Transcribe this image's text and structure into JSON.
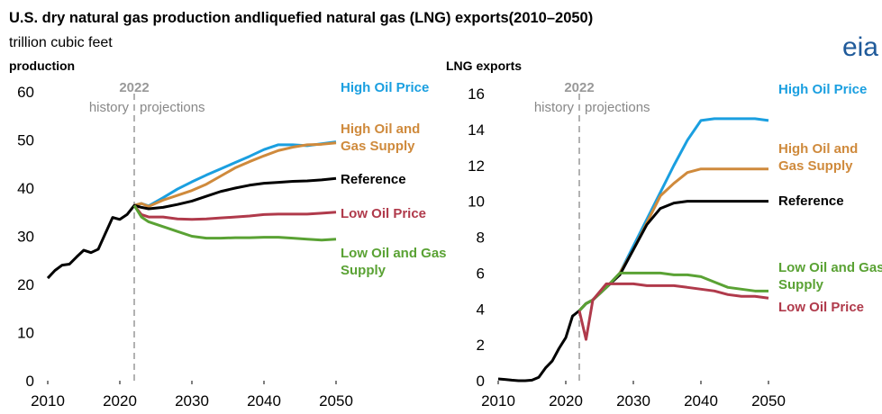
{
  "title": "U.S. dry natural gas production andliquefied natural gas (LNG) exports(2010–2050)",
  "subtitle": "trillion cubic feet",
  "logo": "eia",
  "chart_data": [
    {
      "type": "line",
      "title": "production",
      "x": [
        2010,
        2011,
        2012,
        2013,
        2014,
        2015,
        2016,
        2017,
        2018,
        2019,
        2020,
        2021,
        2022,
        2023,
        2024,
        2026,
        2028,
        2030,
        2032,
        2034,
        2036,
        2038,
        2040,
        2042,
        2044,
        2046,
        2048,
        2050
      ],
      "xlim": [
        2010,
        2050
      ],
      "xticks": [
        2010,
        2020,
        2030,
        2040,
        2050
      ],
      "ylim": [
        0,
        60
      ],
      "yticks": [
        0,
        10,
        20,
        30,
        40,
        50,
        60
      ],
      "divider": {
        "value": 2022,
        "label": "2022"
      },
      "left_note": "history",
      "right_note": "projections",
      "series": [
        {
          "name": "High Oil Price",
          "color": "#1a9fe0",
          "values": [
            null,
            null,
            null,
            null,
            null,
            null,
            null,
            null,
            null,
            null,
            null,
            null,
            36.4,
            36.8,
            36.3,
            38.0,
            39.8,
            41.3,
            42.7,
            44.0,
            45.3,
            46.6,
            48.0,
            49.0,
            49.0,
            48.8,
            49.2,
            49.6
          ]
        },
        {
          "name": "High Oil and Gas Supply",
          "color": "#cf8a3c",
          "values": [
            null,
            null,
            null,
            null,
            null,
            null,
            null,
            null,
            null,
            null,
            null,
            null,
            36.4,
            36.8,
            36.2,
            37.5,
            38.5,
            39.5,
            40.8,
            42.5,
            44.2,
            45.5,
            46.7,
            47.8,
            48.5,
            49.0,
            49.1,
            49.4
          ]
        },
        {
          "name": "Reference",
          "color": "#000000",
          "values": [
            21.3,
            22.9,
            24.0,
            24.2,
            25.7,
            27.1,
            26.6,
            27.3,
            30.6,
            33.9,
            33.5,
            34.5,
            36.4,
            36.0,
            35.7,
            36.0,
            36.6,
            37.3,
            38.3,
            39.3,
            40.0,
            40.6,
            41.0,
            41.2,
            41.4,
            41.5,
            41.7,
            42.0
          ]
        },
        {
          "name": "Low Oil Price",
          "color": "#b03a4b",
          "values": [
            null,
            null,
            null,
            null,
            null,
            null,
            null,
            null,
            null,
            null,
            null,
            null,
            36.4,
            34.5,
            34.0,
            34.0,
            33.6,
            33.5,
            33.6,
            33.8,
            34.0,
            34.2,
            34.5,
            34.6,
            34.6,
            34.6,
            34.8,
            35.0
          ]
        },
        {
          "name": "Low Oil and Gas Supply",
          "color": "#5aa234",
          "values": [
            null,
            null,
            null,
            null,
            null,
            null,
            null,
            null,
            null,
            null,
            null,
            null,
            36.4,
            34.0,
            33.0,
            32.0,
            31.0,
            30.0,
            29.6,
            29.6,
            29.7,
            29.7,
            29.8,
            29.8,
            29.6,
            29.4,
            29.2,
            29.4
          ]
        }
      ]
    },
    {
      "type": "line",
      "title": "LNG exports",
      "x": [
        2010,
        2011,
        2012,
        2013,
        2014,
        2015,
        2016,
        2017,
        2018,
        2019,
        2020,
        2021,
        2022,
        2023,
        2024,
        2026,
        2028,
        2030,
        2032,
        2034,
        2036,
        2038,
        2040,
        2042,
        2044,
        2046,
        2048,
        2050
      ],
      "xlim": [
        2010,
        2050
      ],
      "xticks": [
        2010,
        2020,
        2030,
        2040,
        2050
      ],
      "ylim": [
        0,
        16
      ],
      "yticks": [
        0,
        2,
        4,
        6,
        8,
        10,
        12,
        14,
        16
      ],
      "divider": {
        "value": 2022,
        "label": "2022"
      },
      "left_note": "history",
      "right_note": "projections",
      "series": [
        {
          "name": "High Oil Price",
          "color": "#1a9fe0",
          "values": [
            null,
            null,
            null,
            null,
            null,
            null,
            null,
            null,
            null,
            null,
            null,
            null,
            3.9,
            4.3,
            4.5,
            5.2,
            6.0,
            7.5,
            9.0,
            10.5,
            12.0,
            13.4,
            14.5,
            14.6,
            14.6,
            14.6,
            14.6,
            14.5
          ]
        },
        {
          "name": "High Oil and Gas Supply",
          "color": "#cf8a3c",
          "values": [
            null,
            null,
            null,
            null,
            null,
            null,
            null,
            null,
            null,
            null,
            null,
            null,
            3.9,
            4.3,
            4.5,
            5.2,
            6.0,
            7.3,
            8.8,
            10.3,
            11.0,
            11.6,
            11.8,
            11.8,
            11.8,
            11.8,
            11.8,
            11.8
          ]
        },
        {
          "name": "Reference",
          "color": "#000000",
          "values": [
            0.1,
            0.07,
            0.03,
            0,
            0,
            0.03,
            0.19,
            0.71,
            1.1,
            1.8,
            2.4,
            3.6,
            3.9,
            4.3,
            4.5,
            5.2,
            5.9,
            7.3,
            8.7,
            9.6,
            9.9,
            10.0,
            10.0,
            10.0,
            10.0,
            10.0,
            10.0,
            10.0
          ]
        },
        {
          "name": "Low Oil and Gas Supply",
          "color": "#5aa234",
          "values": [
            null,
            null,
            null,
            null,
            null,
            null,
            null,
            null,
            null,
            null,
            null,
            null,
            3.9,
            4.3,
            4.5,
            5.2,
            6.0,
            6.0,
            6.0,
            6.0,
            5.9,
            5.9,
            5.8,
            5.5,
            5.2,
            5.1,
            5.0,
            5.0
          ]
        },
        {
          "name": "Low Oil Price",
          "color": "#b03a4b",
          "values": [
            null,
            null,
            null,
            null,
            null,
            null,
            null,
            null,
            null,
            null,
            null,
            null,
            3.9,
            2.3,
            4.5,
            5.4,
            5.4,
            5.4,
            5.3,
            5.3,
            5.3,
            5.2,
            5.1,
            5.0,
            4.8,
            4.7,
            4.7,
            4.6
          ]
        }
      ]
    }
  ]
}
